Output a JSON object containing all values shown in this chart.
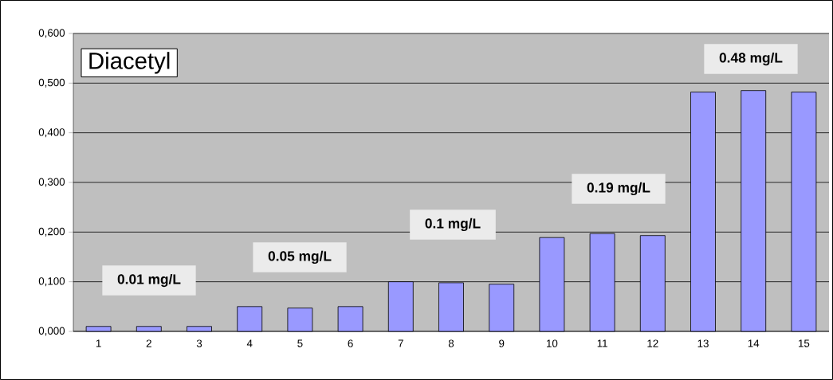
{
  "chart_data": {
    "type": "bar",
    "title": "Diacetyl",
    "categories": [
      "1",
      "2",
      "3",
      "4",
      "5",
      "6",
      "7",
      "8",
      "9",
      "10",
      "11",
      "12",
      "13",
      "14",
      "15"
    ],
    "values": [
      0.01,
      0.01,
      0.01,
      0.05,
      0.047,
      0.05,
      0.1,
      0.098,
      0.095,
      0.189,
      0.197,
      0.193,
      0.482,
      0.485,
      0.482
    ],
    "color": "#9999ff",
    "ylim": [
      0,
      0.6
    ],
    "yticks": [
      {
        "value": 0,
        "label": "0,000"
      },
      {
        "value": 0.1,
        "label": "0,100"
      },
      {
        "value": 0.2,
        "label": "0,200"
      },
      {
        "value": 0.3,
        "label": "0,300"
      },
      {
        "value": 0.4,
        "label": "0,400"
      },
      {
        "value": 0.5,
        "label": "0,500"
      },
      {
        "value": 0.6,
        "label": "0,600"
      }
    ],
    "grid": "y",
    "annotations": [
      "0.01 mg/L",
      "0.05 mg/L",
      "0.1 mg/L",
      "0.19 mg/L",
      "0.48 mg/L"
    ]
  }
}
